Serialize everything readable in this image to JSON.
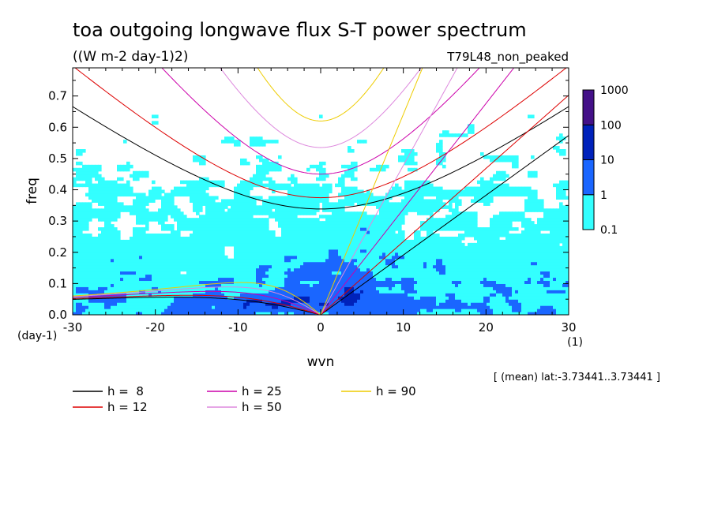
{
  "chart_data": {
    "type": "heatmap",
    "title": "toa outgoing longwave flux S-T power spectrum",
    "subtitle": "((W m-2 day-1)2)",
    "run_label": "T79L48_non_peaked",
    "xlabel": "wvn",
    "ylabel": "freq",
    "x_unit": "(1)",
    "y_unit": "(day-1)",
    "xlim": [
      -30,
      30
    ],
    "ylim": [
      0.0,
      0.79
    ],
    "x_ticks": [
      -30,
      -20,
      -10,
      0,
      10,
      20,
      30
    ],
    "y_ticks": [
      0.0,
      0.1,
      0.2,
      0.3,
      0.4,
      0.5,
      0.6,
      0.7
    ],
    "x_tick_labels": [
      "-30",
      "-20",
      "-10",
      "0",
      "10",
      "20",
      "30"
    ],
    "y_tick_labels": [
      "0.0",
      "0.1",
      "0.2",
      "0.3",
      "0.4",
      "0.5",
      "0.6",
      "0.7"
    ],
    "colorbar": {
      "levels": [
        0.1,
        1,
        10,
        100,
        1000
      ],
      "labels": [
        "0.1",
        "1",
        "10",
        "100",
        "1000"
      ],
      "colors": [
        "#33ffff",
        "#1a66ff",
        "#0022bb",
        "#441188"
      ]
    },
    "footnote": "[ (mean) lat:-3.73441..3.73441 ]",
    "dispersion_curves": [
      {
        "name": "h =  8",
        "color": "#000000",
        "h": 8
      },
      {
        "name": "h = 12",
        "color": "#dd0000",
        "h": 12
      },
      {
        "name": "h = 25",
        "color": "#cc00aa",
        "h": 25
      },
      {
        "name": "h = 50",
        "color": "#dd88dd",
        "h": 50
      },
      {
        "name": "h = 90",
        "color": "#eecc00",
        "h": 90
      }
    ]
  }
}
